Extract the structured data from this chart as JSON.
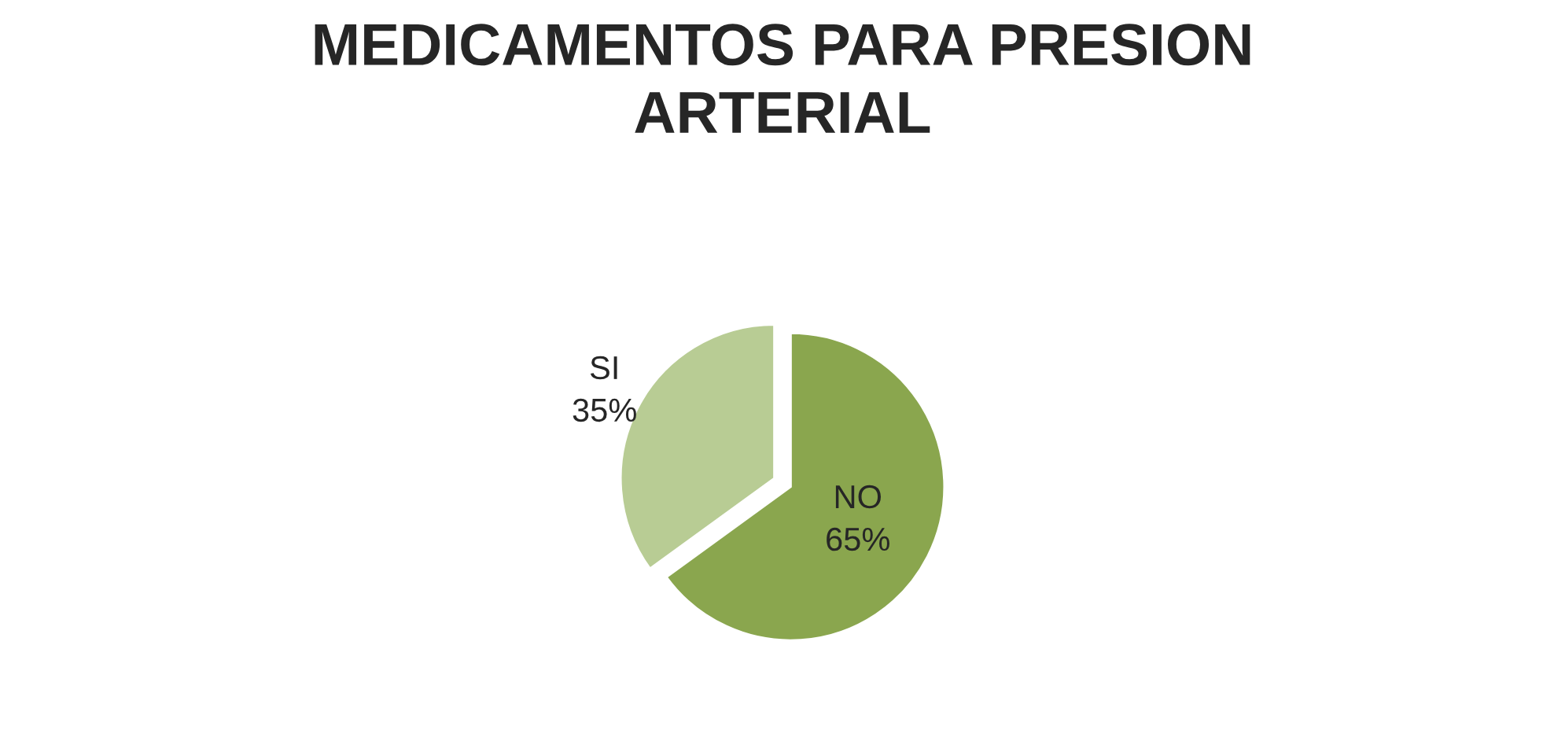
{
  "chart_data": {
    "type": "pie",
    "title": "MEDICAMENTOS PARA PRESION\nARTERIAL",
    "categories": [
      "NO",
      "SI"
    ],
    "values": [
      65,
      35
    ],
    "value_labels": [
      "65%",
      "35%"
    ],
    "colors": [
      "#8aa64e",
      "#b8cc94"
    ]
  }
}
